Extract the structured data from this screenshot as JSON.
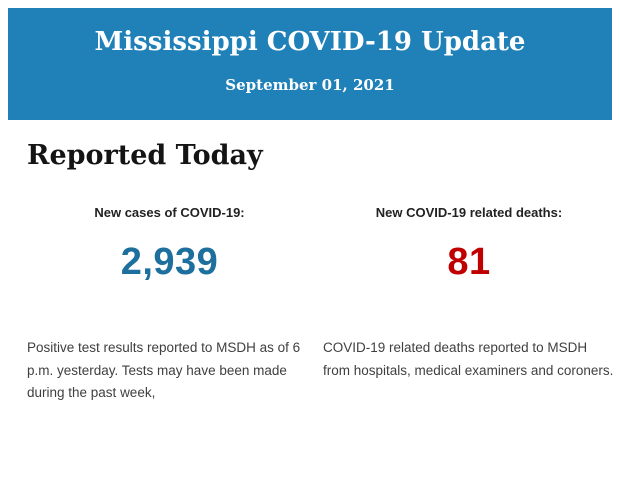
{
  "header": {
    "title": "Mississippi COVID-19 Update",
    "date": "September 01, 2021",
    "bg_color": "#2080b8",
    "text_color": "#ffffff"
  },
  "section": {
    "heading": "Reported Today"
  },
  "stats": {
    "cases": {
      "label": "New cases of COVID-19:",
      "value": "2,939",
      "value_color": "#1d6f9d",
      "description": "Positive test results reported to MSDH as of 6 p.m. yesterday. Tests may have been made during the past week,"
    },
    "deaths": {
      "label": "New COVID-19 related deaths:",
      "value": "81",
      "value_color": "#c00000",
      "description": "COVID-19 related deaths reported to MSDH from hospitals, medical examiners and coroners."
    }
  }
}
